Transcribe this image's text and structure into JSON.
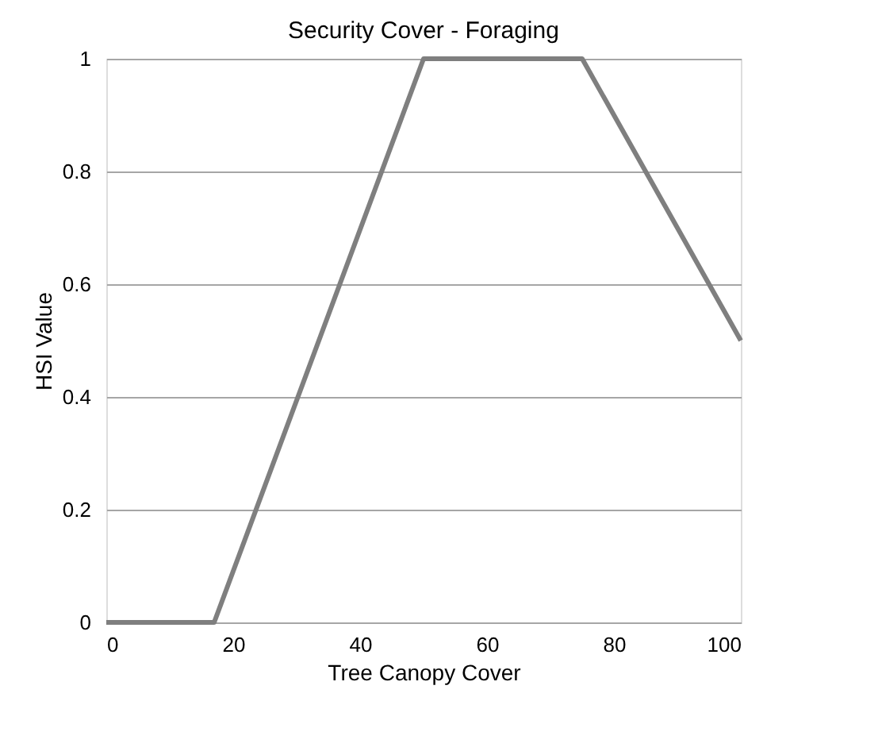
{
  "chart_data": {
    "type": "line",
    "title": "Security Cover - Foraging",
    "xlabel": "Tree Canopy Cover",
    "ylabel": "HSI Value",
    "x": [
      0,
      17,
      50,
      75,
      100
    ],
    "series": [
      {
        "color": "#7f7f7f",
        "values": [
          0,
          0,
          1,
          1,
          0.5
        ]
      }
    ],
    "xlim": [
      0,
      100
    ],
    "xticks": [
      0,
      20,
      40,
      60,
      80,
      100
    ],
    "ylim": [
      0,
      1
    ],
    "yticks": [
      0,
      0.2,
      0.4,
      0.6,
      0.8,
      1
    ],
    "grid": "y",
    "marker": "none",
    "line_style": "solid"
  }
}
